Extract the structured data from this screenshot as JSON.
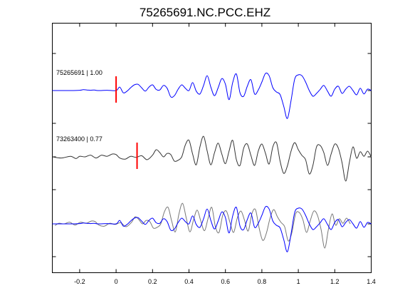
{
  "chart_data": {
    "type": "line",
    "title": "75265691.NC.PCC.EHZ",
    "xlabel": "",
    "ylabel": "",
    "xlim": [
      -0.35,
      1.4
    ],
    "x_ticks": [
      -0.2,
      0,
      0.2,
      0.4,
      0.6,
      0.8,
      1,
      1.2,
      1.4
    ],
    "x_tick_labels": [
      "-0.2",
      "0",
      "0.2",
      "0.4",
      "0.6",
      "0.8",
      "1",
      "1.2",
      "1.4"
    ],
    "grid": false,
    "colors": {
      "master": "#0000ff",
      "secondary": "#333333",
      "overlay": "#777777",
      "pick": "#ff0000",
      "axes": "#000000"
    },
    "traces": [
      {
        "label": "75265691 | 1.00",
        "pick_time": 0.0,
        "color": "#0000ff",
        "waveform": "master",
        "time_shift": 0.0
      },
      {
        "label": "73263400 | 0.77",
        "pick_time": 0.115,
        "color": "#333333",
        "waveform": "secondary",
        "time_shift": 0.0
      },
      {
        "label": "",
        "overlay": true,
        "components": [
          {
            "waveform": "secondary",
            "color": "#777777",
            "time_shift": -0.115
          },
          {
            "waveform": "master",
            "color": "#0000ff",
            "time_shift": 0.0
          }
        ]
      }
    ],
    "waveforms": {
      "master": {
        "t": [
          -0.35,
          -0.25,
          -0.2,
          -0.18,
          -0.16,
          -0.14,
          -0.12,
          -0.1,
          -0.05,
          0,
          0.02,
          0.04,
          0.06,
          0.08,
          0.1,
          0.12,
          0.14,
          0.16,
          0.18,
          0.2,
          0.22,
          0.24,
          0.26,
          0.28,
          0.3,
          0.32,
          0.34,
          0.36,
          0.38,
          0.4,
          0.42,
          0.44,
          0.46,
          0.48,
          0.5,
          0.52,
          0.54,
          0.56,
          0.58,
          0.6,
          0.62,
          0.64,
          0.66,
          0.68,
          0.7,
          0.72,
          0.74,
          0.76,
          0.78,
          0.8,
          0.82,
          0.84,
          0.86,
          0.88,
          0.9,
          0.92,
          0.94,
          0.96,
          0.98,
          1.0,
          1.02,
          1.04,
          1.06,
          1.08,
          1.1,
          1.12,
          1.14,
          1.16,
          1.18,
          1.2,
          1.22,
          1.24,
          1.26,
          1.28,
          1.3,
          1.32,
          1.34,
          1.36,
          1.38,
          1.4
        ],
        "v": [
          0.0,
          0.0,
          0.01,
          0.03,
          0.02,
          0.01,
          0.02,
          0.0,
          0.01,
          0.0,
          0.12,
          -0.08,
          -0.02,
          0.1,
          0.2,
          0.22,
          0.1,
          -0.02,
          0.12,
          0.2,
          0.04,
          0.02,
          0.18,
          0.08,
          -0.22,
          -0.18,
          0.04,
          0.2,
          0.08,
          0.0,
          0.28,
          -0.02,
          -0.12,
          0.18,
          0.52,
          0.12,
          -0.18,
          0.1,
          0.42,
          0.22,
          -0.32,
          0.28,
          0.58,
          -0.08,
          -0.2,
          0.15,
          0.38,
          -0.12,
          0.02,
          0.3,
          0.6,
          0.52,
          0.1,
          -0.05,
          -0.14,
          -0.55,
          -0.98,
          -0.35,
          0.4,
          0.55,
          0.52,
          0.3,
          0.0,
          -0.2,
          -0.1,
          0.04,
          0.18,
          -0.02,
          -0.2,
          0.05,
          0.15,
          -0.1,
          0.05,
          0.15,
          0.0,
          -0.15,
          0.08,
          -0.12,
          0.05,
          0.0
        ]
      },
      "secondary": {
        "t": [
          -0.35,
          -0.3,
          -0.25,
          -0.22,
          -0.2,
          -0.17,
          -0.14,
          -0.11,
          -0.08,
          -0.05,
          -0.02,
          0,
          0.02,
          0.05,
          0.08,
          0.11,
          0.14,
          0.17,
          0.2,
          0.22,
          0.24,
          0.26,
          0.28,
          0.3,
          0.32,
          0.34,
          0.36,
          0.38,
          0.4,
          0.42,
          0.44,
          0.46,
          0.48,
          0.5,
          0.52,
          0.54,
          0.56,
          0.58,
          0.6,
          0.62,
          0.64,
          0.66,
          0.68,
          0.7,
          0.72,
          0.74,
          0.76,
          0.78,
          0.8,
          0.82,
          0.84,
          0.86,
          0.88,
          0.9,
          0.92,
          0.94,
          0.96,
          0.98,
          1.0,
          1.02,
          1.04,
          1.06,
          1.08,
          1.1,
          1.12,
          1.14,
          1.16,
          1.18,
          1.2,
          1.22,
          1.24,
          1.26,
          1.28,
          1.3,
          1.32,
          1.34,
          1.36,
          1.38,
          1.4
        ],
        "v": [
          0.0,
          -0.04,
          0.02,
          -0.06,
          0.02,
          0.0,
          0.06,
          -0.04,
          0.06,
          0.02,
          0.1,
          0.08,
          -0.04,
          -0.08,
          0.02,
          -0.02,
          0.04,
          -0.1,
          0.06,
          0.25,
          0.15,
          0.0,
          0.12,
          0.08,
          -0.15,
          -0.12,
          0.0,
          0.42,
          0.58,
          0.1,
          -0.28,
          0.35,
          0.72,
          0.2,
          -0.28,
          0.14,
          0.48,
          0.1,
          -0.24,
          0.2,
          0.58,
          -0.1,
          -0.3,
          0.3,
          0.45,
          0.05,
          -0.3,
          0.2,
          0.45,
          0.12,
          -0.25,
          0.35,
          0.5,
          -0.15,
          -0.58,
          -0.32,
          0.2,
          0.5,
          0.25,
          0.05,
          -0.1,
          -0.6,
          -0.3,
          0.35,
          0.4,
          0.15,
          -0.3,
          0.1,
          0.45,
          0.3,
          -0.2,
          -0.85,
          -0.2,
          0.35,
          -0.05,
          0.18,
          0.02,
          0.2,
          0.0
        ]
      }
    }
  }
}
